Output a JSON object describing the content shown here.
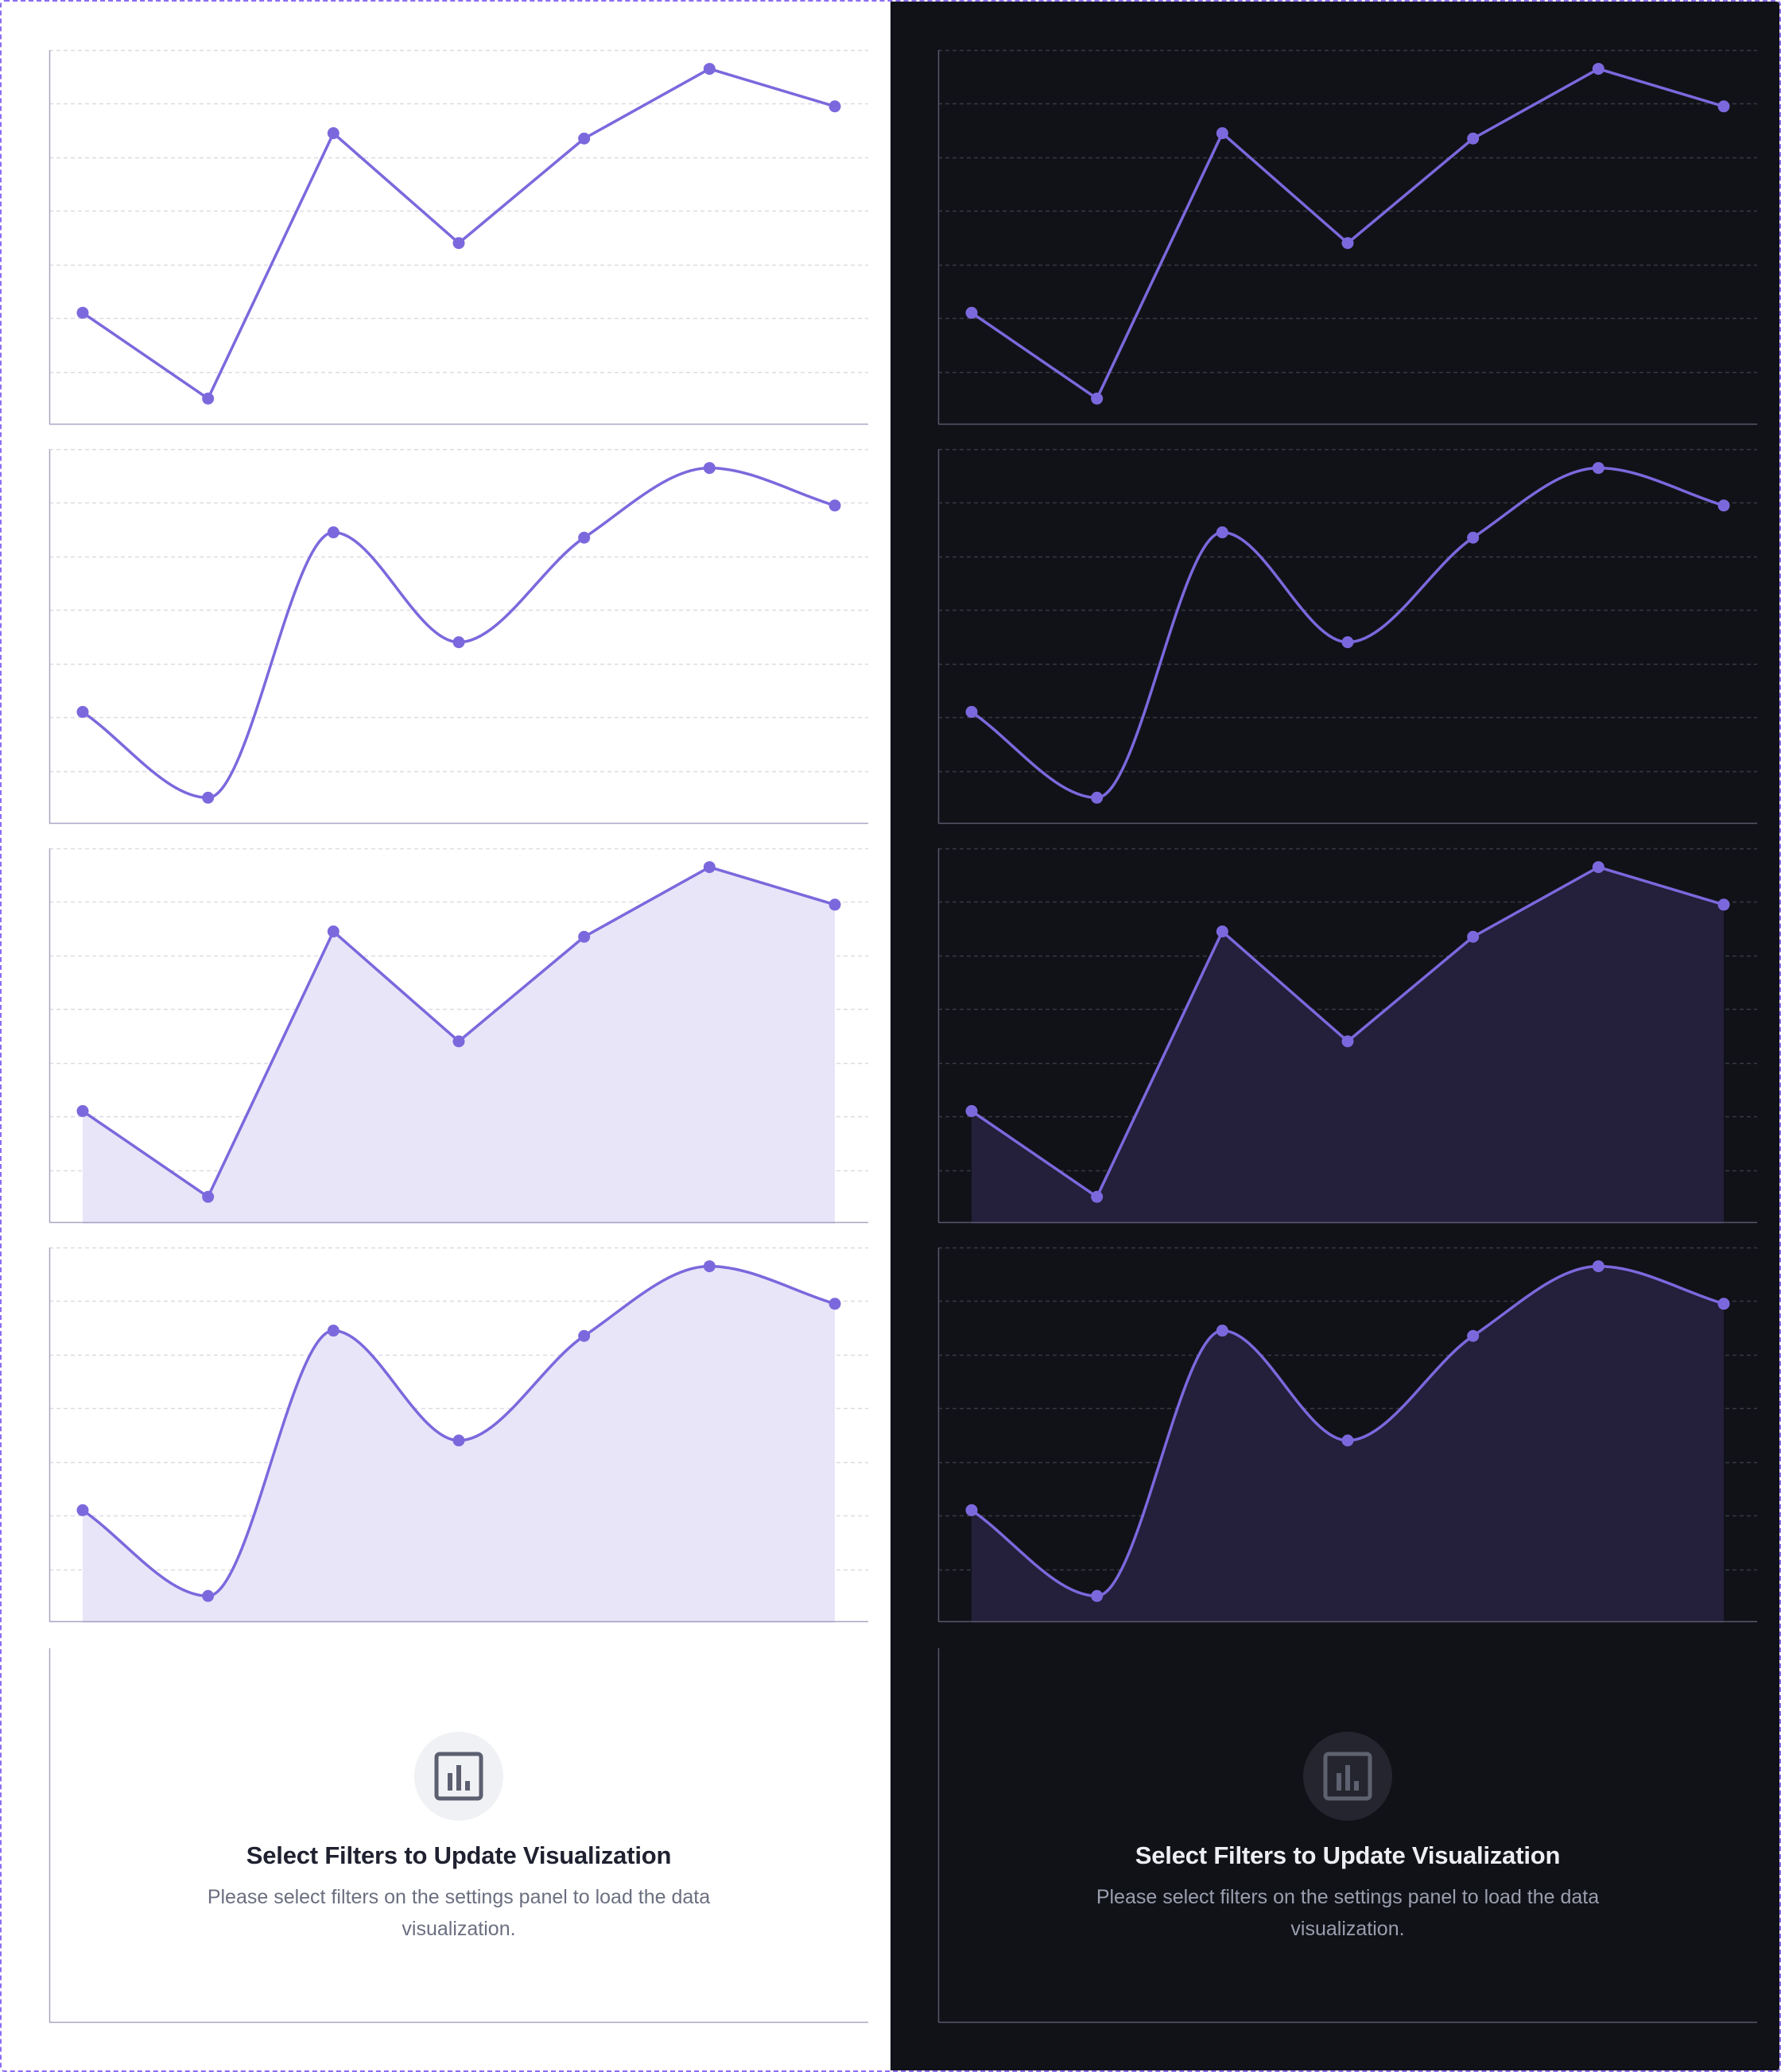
{
  "colors": {
    "accent": "#7c68dd",
    "frame_border": "#8b6cf0",
    "light_bg": "#ffffff",
    "dark_bg": "#111218",
    "light_area_fill": "#e8e5f8",
    "dark_area_fill": "#241f3a",
    "light_axis": "#a9a6c4",
    "dark_axis": "#56566a",
    "light_grid": "#dcdce4",
    "dark_grid": "#363845"
  },
  "chart_data": [
    {
      "type": "line",
      "theme": "light",
      "curve": "linear",
      "grid": true,
      "ylim": [
        0,
        7
      ],
      "x": [
        1,
        2,
        3,
        4,
        5,
        6,
        7
      ],
      "values": [
        2.1,
        0.5,
        5.45,
        3.4,
        5.35,
        6.65,
        5.95
      ]
    },
    {
      "type": "line",
      "theme": "light",
      "curve": "smooth",
      "grid": true,
      "ylim": [
        0,
        7
      ],
      "x": [
        1,
        2,
        3,
        4,
        5,
        6,
        7
      ],
      "values": [
        2.1,
        0.5,
        5.45,
        3.4,
        5.35,
        6.65,
        5.95
      ]
    },
    {
      "type": "area",
      "theme": "light",
      "curve": "linear",
      "grid": true,
      "ylim": [
        0,
        7
      ],
      "x": [
        1,
        2,
        3,
        4,
        5,
        6,
        7
      ],
      "values": [
        2.1,
        0.5,
        5.45,
        3.4,
        5.35,
        6.65,
        5.95
      ]
    },
    {
      "type": "area",
      "theme": "light",
      "curve": "smooth",
      "grid": true,
      "ylim": [
        0,
        7
      ],
      "x": [
        1,
        2,
        3,
        4,
        5,
        6,
        7
      ],
      "values": [
        2.1,
        0.5,
        5.45,
        3.4,
        5.35,
        6.65,
        5.95
      ]
    },
    {
      "type": "line",
      "theme": "dark",
      "curve": "linear",
      "grid": true,
      "ylim": [
        0,
        7
      ],
      "x": [
        1,
        2,
        3,
        4,
        5,
        6,
        7
      ],
      "values": [
        2.1,
        0.5,
        5.45,
        3.4,
        5.35,
        6.65,
        5.95
      ]
    },
    {
      "type": "line",
      "theme": "dark",
      "curve": "smooth",
      "grid": true,
      "ylim": [
        0,
        7
      ],
      "x": [
        1,
        2,
        3,
        4,
        5,
        6,
        7
      ],
      "values": [
        2.1,
        0.5,
        5.45,
        3.4,
        5.35,
        6.65,
        5.95
      ]
    },
    {
      "type": "area",
      "theme": "dark",
      "curve": "linear",
      "grid": true,
      "ylim": [
        0,
        7
      ],
      "x": [
        1,
        2,
        3,
        4,
        5,
        6,
        7
      ],
      "values": [
        2.1,
        0.5,
        5.45,
        3.4,
        5.35,
        6.65,
        5.95
      ]
    },
    {
      "type": "area",
      "theme": "dark",
      "curve": "smooth",
      "grid": true,
      "ylim": [
        0,
        7
      ],
      "x": [
        1,
        2,
        3,
        4,
        5,
        6,
        7
      ],
      "values": [
        2.1,
        0.5,
        5.45,
        3.4,
        5.35,
        6.65,
        5.95
      ]
    }
  ],
  "empty_state": {
    "icon": "bar-chart-icon",
    "title": "Select Filters to Update Visualization",
    "description": "Please select filters on the settings panel to load the data visualization."
  }
}
